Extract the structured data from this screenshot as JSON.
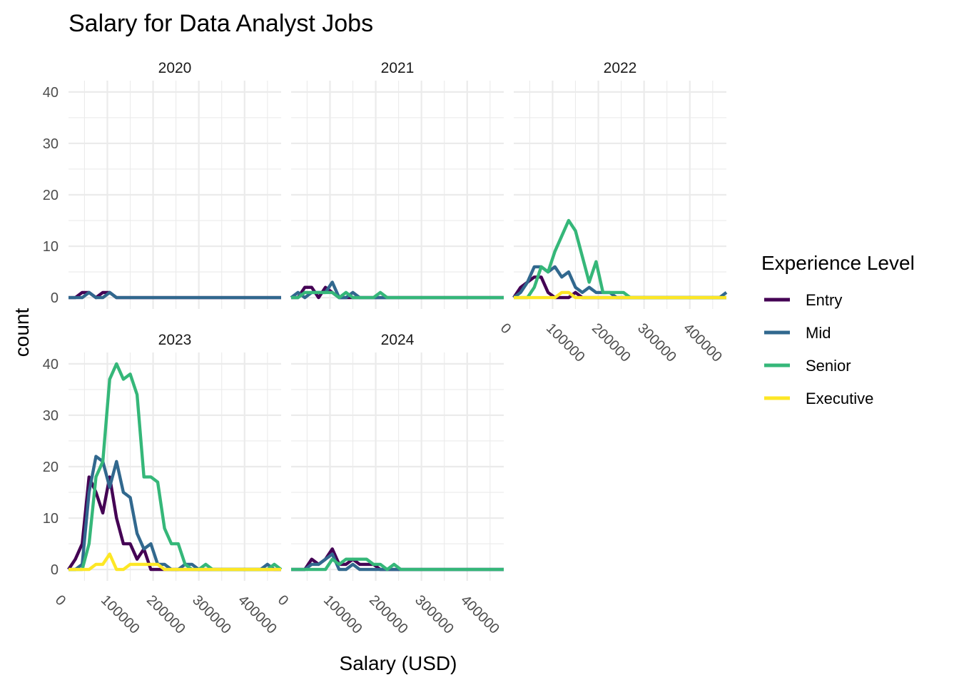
{
  "chart_data": {
    "type": "line",
    "title": "Salary for Data Analyst Jobs",
    "xlabel": "Salary (USD)",
    "ylabel": "count",
    "xlim": [
      15000,
      480000
    ],
    "ylim": [
      0,
      40
    ],
    "x_ticks": [
      0,
      100000,
      200000,
      300000,
      400000
    ],
    "x_tick_labels": [
      "0",
      "100000",
      "200000",
      "300000",
      "400000"
    ],
    "y_ticks": [
      0,
      10,
      20,
      30,
      40
    ],
    "y_tick_labels": [
      "0",
      "10",
      "20",
      "30",
      "40"
    ],
    "grid": true,
    "legend": {
      "title": "Experience Level",
      "position": "right",
      "entries": [
        {
          "name": "Entry",
          "color": "#440154"
        },
        {
          "name": "Mid",
          "color": "#31688e"
        },
        {
          "name": "Senior",
          "color": "#35b779"
        },
        {
          "name": "Executive",
          "color": "#fde725"
        }
      ]
    },
    "bins_x": [
      15000,
      30000,
      45000,
      60000,
      75000,
      90000,
      105000,
      120000,
      135000,
      150000,
      165000,
      180000,
      195000,
      210000,
      225000,
      240000,
      255000,
      270000,
      285000,
      300000,
      315000,
      330000,
      345000,
      360000,
      375000,
      390000,
      405000,
      420000,
      435000,
      450000,
      465000,
      480000
    ],
    "panels": [
      {
        "label": "2020",
        "series": [
          {
            "name": "Entry",
            "values": [
              0,
              0,
              1,
              1,
              0,
              1,
              1,
              0,
              0,
              0,
              0,
              0,
              0,
              0,
              0,
              0,
              0,
              0,
              0,
              0,
              0,
              0,
              0,
              0,
              0,
              0,
              0,
              0,
              0,
              0,
              0,
              0
            ]
          },
          {
            "name": "Mid",
            "values": [
              0,
              0,
              0,
              1,
              0,
              0,
              1,
              0,
              0,
              0,
              0,
              0,
              0,
              0,
              0,
              0,
              0,
              0,
              0,
              0,
              0,
              0,
              0,
              0,
              0,
              0,
              0,
              0,
              0,
              0,
              0,
              0
            ]
          }
        ]
      },
      {
        "label": "2021",
        "series": [
          {
            "name": "Entry",
            "values": [
              0,
              0,
              2,
              2,
              0,
              2,
              1,
              0,
              0,
              0,
              0,
              0,
              0,
              0,
              0,
              0,
              0,
              0,
              0,
              0,
              0,
              0,
              0,
              0,
              0,
              0,
              0,
              0,
              0,
              0,
              0,
              0
            ]
          },
          {
            "name": "Mid",
            "values": [
              0,
              1,
              0,
              1,
              1,
              1,
              3,
              0,
              0,
              1,
              0,
              0,
              0,
              0,
              0,
              0,
              0,
              0,
              0,
              0,
              0,
              0,
              0,
              0,
              0,
              0,
              0,
              0,
              0,
              0,
              0,
              0
            ]
          },
          {
            "name": "Senior",
            "values": [
              0,
              0,
              1,
              1,
              1,
              1,
              1,
              0,
              1,
              0,
              0,
              0,
              0,
              1,
              0,
              0,
              0,
              0,
              0,
              0,
              0,
              0,
              0,
              0,
              0,
              0,
              0,
              0,
              0,
              0,
              0,
              0
            ]
          }
        ]
      },
      {
        "label": "2022",
        "series": [
          {
            "name": "Entry",
            "values": [
              0,
              2,
              3,
              4,
              4,
              1,
              0,
              0,
              0,
              1,
              0,
              0,
              0,
              0,
              0,
              0,
              0,
              0,
              0,
              0,
              0,
              0,
              0,
              0,
              0,
              0,
              0,
              0,
              0,
              0,
              0,
              0
            ]
          },
          {
            "name": "Mid",
            "values": [
              0,
              1,
              3,
              6,
              6,
              5,
              6,
              4,
              5,
              2,
              1,
              2,
              1,
              1,
              1,
              0,
              0,
              0,
              0,
              0,
              0,
              0,
              0,
              0,
              0,
              0,
              0,
              0,
              0,
              0,
              0,
              1
            ]
          },
          {
            "name": "Senior",
            "values": [
              0,
              0,
              0,
              2,
              6,
              5,
              9,
              12,
              15,
              13,
              8,
              3,
              7,
              1,
              1,
              1,
              1,
              0,
              0,
              0,
              0,
              0,
              0,
              0,
              0,
              0,
              0,
              0,
              0,
              0,
              0,
              0
            ]
          },
          {
            "name": "Executive",
            "values": [
              0,
              0,
              0,
              0,
              0,
              0,
              0,
              1,
              1,
              0,
              0,
              0,
              0,
              0,
              0,
              0,
              0,
              0,
              0,
              0,
              0,
              0,
              0,
              0,
              0,
              0,
              0,
              0,
              0,
              0,
              0,
              0
            ]
          }
        ]
      },
      {
        "label": "2023",
        "series": [
          {
            "name": "Entry",
            "values": [
              0,
              2,
              5,
              18,
              15,
              11,
              18,
              10,
              5,
              5,
              2,
              4,
              0,
              0,
              0,
              0,
              0,
              0,
              0,
              0,
              0,
              0,
              0,
              0,
              0,
              0,
              0,
              0,
              0,
              0,
              0,
              0
            ]
          },
          {
            "name": "Mid",
            "values": [
              0,
              0,
              1,
              15,
              22,
              21,
              16,
              21,
              15,
              14,
              7,
              4,
              5,
              1,
              1,
              0,
              0,
              1,
              1,
              0,
              0,
              0,
              0,
              0,
              0,
              0,
              0,
              0,
              0,
              1,
              0,
              0
            ]
          },
          {
            "name": "Senior",
            "values": [
              0,
              0,
              0,
              5,
              18,
              21,
              37,
              40,
              37,
              38,
              34,
              18,
              18,
              17,
              8,
              5,
              5,
              1,
              0,
              0,
              1,
              0,
              0,
              0,
              0,
              0,
              0,
              0,
              0,
              0,
              1,
              0
            ]
          },
          {
            "name": "Executive",
            "values": [
              0,
              0,
              0,
              0,
              1,
              1,
              3,
              0,
              0,
              1,
              1,
              1,
              1,
              1,
              0,
              0,
              0,
              0,
              0,
              0,
              0,
              0,
              0,
              0,
              0,
              0,
              0,
              0,
              0,
              0,
              0,
              0
            ]
          }
        ]
      },
      {
        "label": "2024",
        "series": [
          {
            "name": "Entry",
            "values": [
              0,
              0,
              0,
              2,
              1,
              2,
              4,
              1,
              1,
              2,
              1,
              1,
              1,
              0,
              0,
              0,
              0,
              0,
              0,
              0,
              0,
              0,
              0,
              0,
              0,
              0,
              0,
              0,
              0,
              0,
              0,
              0
            ]
          },
          {
            "name": "Mid",
            "values": [
              0,
              0,
              0,
              1,
              1,
              2,
              3,
              0,
              0,
              1,
              0,
              0,
              0,
              0,
              0,
              0,
              0,
              0,
              0,
              0,
              0,
              0,
              0,
              0,
              0,
              0,
              0,
              0,
              0,
              0,
              0,
              0
            ]
          },
          {
            "name": "Senior",
            "values": [
              0,
              0,
              0,
              0,
              0,
              0,
              2,
              1,
              2,
              2,
              2,
              2,
              1,
              1,
              0,
              1,
              0,
              0,
              0,
              0,
              0,
              0,
              0,
              0,
              0,
              0,
              0,
              0,
              0,
              0,
              0,
              0
            ]
          }
        ]
      }
    ]
  }
}
